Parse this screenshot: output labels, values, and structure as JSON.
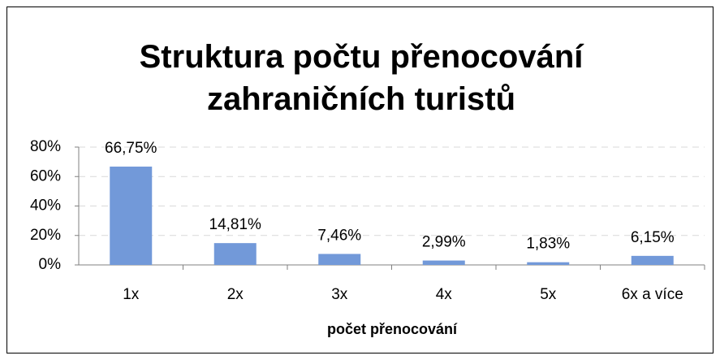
{
  "chart_data": {
    "type": "bar",
    "title": "Struktura počtu přenocování zahraničních turistů",
    "x_label": "počet přenocování",
    "categories": [
      "1x",
      "2x",
      "3x",
      "4x",
      "5x",
      "6x a více"
    ],
    "values": [
      66.75,
      14.81,
      7.46,
      2.99,
      1.83,
      6.15
    ],
    "value_labels": [
      "66,75%",
      "14,81%",
      "7,46%",
      "2,99%",
      "1,83%",
      "6,15%"
    ],
    "color": "#7299d9",
    "ylim": [
      0,
      80
    ],
    "yticks": [
      {
        "value": 0,
        "label": "0%"
      },
      {
        "value": 20,
        "label": "20%"
      },
      {
        "value": 40,
        "label": "40%"
      },
      {
        "value": 60,
        "label": "60%"
      },
      {
        "value": 80,
        "label": "80%"
      }
    ],
    "grid": true
  }
}
